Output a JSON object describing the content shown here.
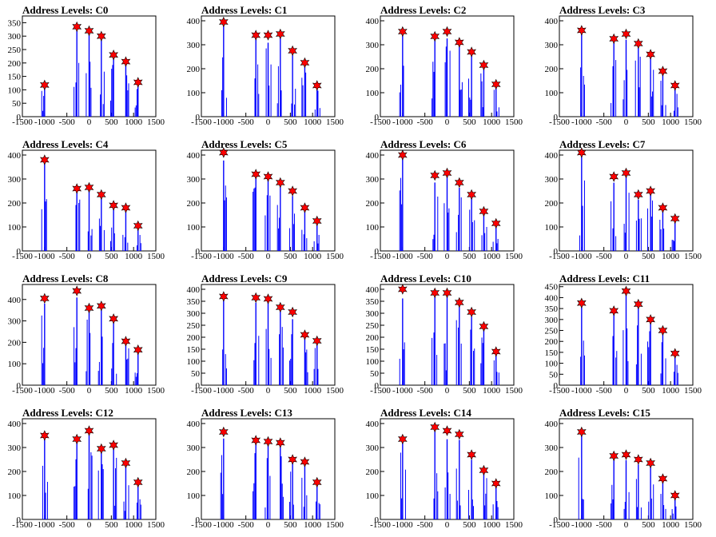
{
  "chart_data": [
    {
      "type": "bar",
      "title": "Address Levels: C0",
      "xlim": [
        -1500,
        1500
      ],
      "ylim": [
        0,
        375
      ],
      "yticks": [
        0,
        50,
        100,
        150,
        200,
        250,
        300,
        350
      ],
      "xticks": [
        -1500,
        -1000,
        -500,
        0,
        500,
        1000,
        1500
      ],
      "peaks": [
        {
          "x": -1000,
          "y": 118
        },
        {
          "x": -275,
          "y": 335
        },
        {
          "x": 0,
          "y": 320
        },
        {
          "x": 275,
          "y": 300
        },
        {
          "x": 550,
          "y": 230
        },
        {
          "x": 825,
          "y": 205
        },
        {
          "x": 1100,
          "y": 128
        }
      ]
    },
    {
      "type": "bar",
      "title": "Address Levels: C1",
      "xlim": [
        -1500,
        1500
      ],
      "ylim": [
        0,
        420
      ],
      "yticks": [
        0,
        100,
        200,
        300,
        400
      ],
      "xticks": [
        -1500,
        -1000,
        -500,
        0,
        500,
        1000,
        1500
      ],
      "peaks": [
        {
          "x": -1000,
          "y": 395
        },
        {
          "x": -275,
          "y": 340
        },
        {
          "x": 0,
          "y": 340
        },
        {
          "x": 275,
          "y": 345
        },
        {
          "x": 550,
          "y": 275
        },
        {
          "x": 825,
          "y": 225
        },
        {
          "x": 1100,
          "y": 130
        }
      ]
    },
    {
      "type": "bar",
      "title": "Address Levels: C2",
      "xlim": [
        -1500,
        1500
      ],
      "ylim": [
        0,
        420
      ],
      "yticks": [
        0,
        100,
        200,
        300,
        400
      ],
      "xticks": [
        -1500,
        -1000,
        -500,
        0,
        500,
        1000,
        1500
      ],
      "peaks": [
        {
          "x": -1000,
          "y": 355
        },
        {
          "x": -275,
          "y": 335
        },
        {
          "x": 0,
          "y": 355
        },
        {
          "x": 275,
          "y": 310
        },
        {
          "x": 550,
          "y": 270
        },
        {
          "x": 825,
          "y": 215
        },
        {
          "x": 1100,
          "y": 135
        }
      ]
    },
    {
      "type": "bar",
      "title": "Address Levels: C3",
      "xlim": [
        -1500,
        1500
      ],
      "ylim": [
        0,
        420
      ],
      "yticks": [
        0,
        100,
        200,
        300,
        400
      ],
      "xticks": [
        -1500,
        -1000,
        -500,
        0,
        500,
        1000,
        1500
      ],
      "peaks": [
        {
          "x": -1000,
          "y": 360
        },
        {
          "x": -275,
          "y": 325
        },
        {
          "x": 0,
          "y": 345
        },
        {
          "x": 275,
          "y": 305
        },
        {
          "x": 550,
          "y": 260
        },
        {
          "x": 825,
          "y": 190
        },
        {
          "x": 1100,
          "y": 130
        }
      ]
    },
    {
      "type": "bar",
      "title": "Address Levels: C4",
      "xlim": [
        -1500,
        1500
      ],
      "ylim": [
        0,
        420
      ],
      "yticks": [
        0,
        100,
        200,
        300,
        400
      ],
      "xticks": [
        -1500,
        -1000,
        -500,
        0,
        500,
        1000,
        1500
      ],
      "peaks": [
        {
          "x": -1000,
          "y": 380
        },
        {
          "x": -275,
          "y": 260
        },
        {
          "x": 0,
          "y": 265
        },
        {
          "x": 275,
          "y": 235
        },
        {
          "x": 550,
          "y": 190
        },
        {
          "x": 825,
          "y": 180
        },
        {
          "x": 1100,
          "y": 105
        }
      ]
    },
    {
      "type": "bar",
      "title": "Address Levels: C5",
      "xlim": [
        -1500,
        1500
      ],
      "ylim": [
        0,
        420
      ],
      "yticks": [
        0,
        100,
        200,
        300,
        400
      ],
      "xticks": [
        -1500,
        -1000,
        -500,
        0,
        500,
        1000,
        1500
      ],
      "peaks": [
        {
          "x": -1000,
          "y": 410
        },
        {
          "x": -275,
          "y": 320
        },
        {
          "x": 0,
          "y": 310
        },
        {
          "x": 275,
          "y": 285
        },
        {
          "x": 550,
          "y": 250
        },
        {
          "x": 825,
          "y": 180
        },
        {
          "x": 1100,
          "y": 125
        }
      ]
    },
    {
      "type": "bar",
      "title": "Address Levels: C6",
      "xlim": [
        -1500,
        1500
      ],
      "ylim": [
        0,
        420
      ],
      "yticks": [
        0,
        100,
        200,
        300,
        400
      ],
      "xticks": [
        -1500,
        -1000,
        -500,
        0,
        500,
        1000,
        1500
      ],
      "peaks": [
        {
          "x": -1000,
          "y": 400
        },
        {
          "x": -275,
          "y": 315
        },
        {
          "x": 0,
          "y": 325
        },
        {
          "x": 275,
          "y": 285
        },
        {
          "x": 550,
          "y": 235
        },
        {
          "x": 825,
          "y": 165
        },
        {
          "x": 1100,
          "y": 115
        }
      ]
    },
    {
      "type": "bar",
      "title": "Address Levels: C7",
      "xlim": [
        -1500,
        1500
      ],
      "ylim": [
        0,
        420
      ],
      "yticks": [
        0,
        100,
        200,
        300,
        400
      ],
      "xticks": [
        -1500,
        -1000,
        -500,
        0,
        500,
        1000,
        1500
      ],
      "peaks": [
        {
          "x": -1000,
          "y": 410
        },
        {
          "x": -275,
          "y": 310
        },
        {
          "x": 0,
          "y": 325
        },
        {
          "x": 275,
          "y": 235
        },
        {
          "x": 550,
          "y": 250
        },
        {
          "x": 825,
          "y": 180
        },
        {
          "x": 1100,
          "y": 135
        }
      ]
    },
    {
      "type": "bar",
      "title": "Address Levels: C8",
      "xlim": [
        -1500,
        1500
      ],
      "ylim": [
        0,
        470
      ],
      "yticks": [
        0,
        100,
        200,
        300,
        400
      ],
      "xticks": [
        -1500,
        -1000,
        -500,
        0,
        500,
        1000,
        1500
      ],
      "peaks": [
        {
          "x": -1000,
          "y": 405
        },
        {
          "x": -275,
          "y": 440
        },
        {
          "x": 0,
          "y": 360
        },
        {
          "x": 275,
          "y": 370
        },
        {
          "x": 550,
          "y": 310
        },
        {
          "x": 825,
          "y": 205
        },
        {
          "x": 1100,
          "y": 165
        }
      ]
    },
    {
      "type": "bar",
      "title": "Address Levels: C9",
      "xlim": [
        -1500,
        1500
      ],
      "ylim": [
        0,
        420
      ],
      "yticks": [
        0,
        50,
        100,
        150,
        200,
        250,
        300,
        350,
        400
      ],
      "xticks": [
        -1500,
        -1000,
        -500,
        0,
        500,
        1000,
        1500
      ],
      "peaks": [
        {
          "x": -1000,
          "y": 370
        },
        {
          "x": -275,
          "y": 365
        },
        {
          "x": 0,
          "y": 360
        },
        {
          "x": 275,
          "y": 325
        },
        {
          "x": 550,
          "y": 305
        },
        {
          "x": 825,
          "y": 210
        },
        {
          "x": 1100,
          "y": 185
        }
      ]
    },
    {
      "type": "bar",
      "title": "Address Levels: C10",
      "xlim": [
        -1500,
        1500
      ],
      "ylim": [
        0,
        420
      ],
      "yticks": [
        0,
        50,
        100,
        150,
        200,
        250,
        300,
        350,
        400
      ],
      "xticks": [
        -1500,
        -1000,
        -500,
        0,
        500,
        1000,
        1500
      ],
      "peaks": [
        {
          "x": -1000,
          "y": 400
        },
        {
          "x": -275,
          "y": 385
        },
        {
          "x": 0,
          "y": 385
        },
        {
          "x": 275,
          "y": 345
        },
        {
          "x": 550,
          "y": 305
        },
        {
          "x": 825,
          "y": 245
        },
        {
          "x": 1100,
          "y": 140
        }
      ]
    },
    {
      "type": "bar",
      "title": "Address Levels: C11",
      "xlim": [
        -1500,
        1500
      ],
      "ylim": [
        0,
        460
      ],
      "yticks": [
        0,
        50,
        100,
        150,
        200,
        250,
        300,
        350,
        400,
        450
      ],
      "xticks": [
        -1500,
        -1000,
        -500,
        0,
        500,
        1000,
        1500
      ],
      "peaks": [
        {
          "x": -1000,
          "y": 375
        },
        {
          "x": -275,
          "y": 340
        },
        {
          "x": 0,
          "y": 430
        },
        {
          "x": 275,
          "y": 370
        },
        {
          "x": 550,
          "y": 300
        },
        {
          "x": 825,
          "y": 250
        },
        {
          "x": 1100,
          "y": 145
        }
      ]
    },
    {
      "type": "bar",
      "title": "Address Levels: C12",
      "xlim": [
        -1500,
        1500
      ],
      "ylim": [
        0,
        420
      ],
      "yticks": [
        0,
        100,
        200,
        300,
        400
      ],
      "xticks": [
        -1500,
        -1000,
        -500,
        0,
        500,
        1000,
        1500
      ],
      "peaks": [
        {
          "x": -1000,
          "y": 350
        },
        {
          "x": -275,
          "y": 335
        },
        {
          "x": 0,
          "y": 370
        },
        {
          "x": 275,
          "y": 295
        },
        {
          "x": 550,
          "y": 310
        },
        {
          "x": 825,
          "y": 235
        },
        {
          "x": 1100,
          "y": 155
        }
      ]
    },
    {
      "type": "bar",
      "title": "Address Levels: C13",
      "xlim": [
        -1500,
        1500
      ],
      "ylim": [
        0,
        420
      ],
      "yticks": [
        0,
        100,
        200,
        300,
        400
      ],
      "xticks": [
        -1500,
        -1000,
        -500,
        0,
        500,
        1000,
        1500
      ],
      "peaks": [
        {
          "x": -1000,
          "y": 365
        },
        {
          "x": -275,
          "y": 330
        },
        {
          "x": 0,
          "y": 325
        },
        {
          "x": 275,
          "y": 320
        },
        {
          "x": 550,
          "y": 250
        },
        {
          "x": 825,
          "y": 240
        },
        {
          "x": 1100,
          "y": 155
        }
      ]
    },
    {
      "type": "bar",
      "title": "Address Levels: C14",
      "xlim": [
        -1500,
        1500
      ],
      "ylim": [
        0,
        420
      ],
      "yticks": [
        0,
        100,
        200,
        300,
        400
      ],
      "xticks": [
        -1500,
        -1000,
        -500,
        0,
        500,
        1000,
        1500
      ],
      "peaks": [
        {
          "x": -1000,
          "y": 335
        },
        {
          "x": -275,
          "y": 385
        },
        {
          "x": 0,
          "y": 370
        },
        {
          "x": 275,
          "y": 355
        },
        {
          "x": 550,
          "y": 270
        },
        {
          "x": 825,
          "y": 205
        },
        {
          "x": 1100,
          "y": 150
        }
      ]
    },
    {
      "type": "bar",
      "title": "Address Levels: C15",
      "xlim": [
        -1500,
        1500
      ],
      "ylim": [
        0,
        420
      ],
      "yticks": [
        0,
        100,
        200,
        300,
        400
      ],
      "xticks": [
        -1500,
        -1000,
        -500,
        0,
        500,
        1000,
        1500
      ],
      "peaks": [
        {
          "x": -1000,
          "y": 365
        },
        {
          "x": -275,
          "y": 265
        },
        {
          "x": 0,
          "y": 270
        },
        {
          "x": 275,
          "y": 250
        },
        {
          "x": 550,
          "y": 235
        },
        {
          "x": 825,
          "y": 170
        },
        {
          "x": 1100,
          "y": 100
        }
      ]
    }
  ],
  "colors": {
    "bars": "#0000ff",
    "marker_fill": "#ff0000",
    "marker_stroke": "#000000",
    "axis": "#000000"
  }
}
